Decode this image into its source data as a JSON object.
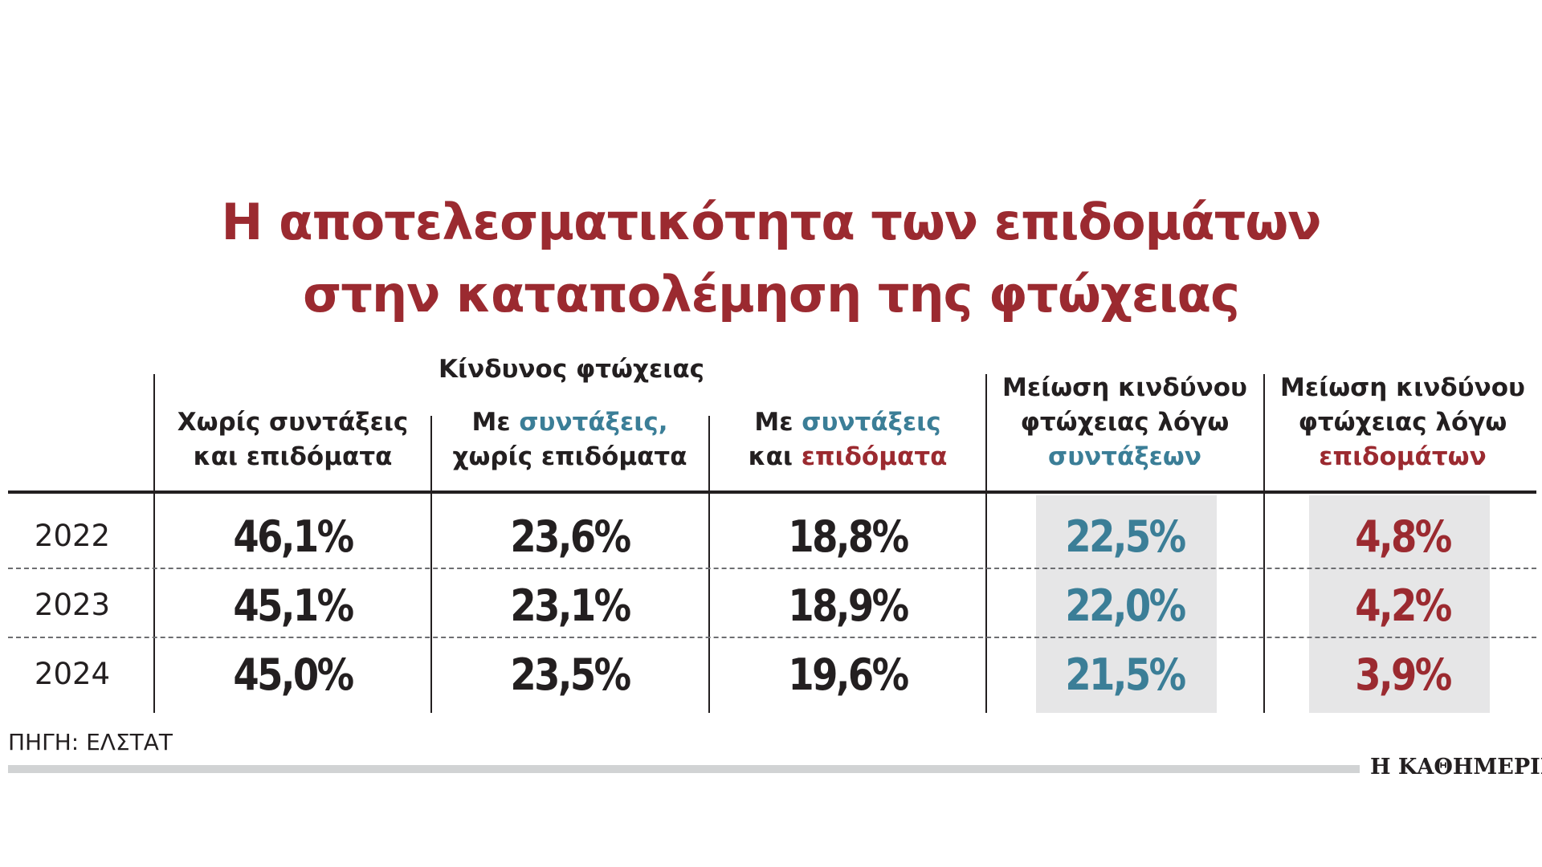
{
  "chart_data": {
    "type": "table",
    "title_lines": [
      "Η αποτελεσματικότητα των επιδομάτων",
      "στην καταπολέμηση της φτώχειας"
    ],
    "group_header": "Κίνδυνος φτώχειας",
    "columns": [
      {
        "parts": [
          {
            "line": 0,
            "text": "Χωρίς συντάξεις",
            "color": "dark"
          },
          {
            "line": 1,
            "text": "και επιδόματα",
            "color": "dark"
          }
        ]
      },
      {
        "parts": [
          {
            "line": 0,
            "text": "Με ",
            "color": "dark"
          },
          {
            "line": 0,
            "text": "συντάξεις,",
            "color": "blue"
          },
          {
            "line": 1,
            "text": "χωρίς επιδόματα",
            "color": "dark"
          }
        ]
      },
      {
        "parts": [
          {
            "line": 0,
            "text": "Με ",
            "color": "dark"
          },
          {
            "line": 0,
            "text": "συντάξεις",
            "color": "blue"
          },
          {
            "line": 1,
            "text": "και ",
            "color": "dark"
          },
          {
            "line": 1,
            "text": "επιδόματα",
            "color": "red"
          }
        ]
      },
      {
        "parts": [
          {
            "line": 0,
            "text": "Μείωση κινδύνου",
            "color": "dark"
          },
          {
            "line": 1,
            "text": "φτώχειας λόγω",
            "color": "dark"
          },
          {
            "line": 2,
            "text": "συντάξεων",
            "color": "blue"
          }
        ]
      },
      {
        "parts": [
          {
            "line": 0,
            "text": "Μείωση κινδύνου",
            "color": "dark"
          },
          {
            "line": 1,
            "text": "φτώχειας λόγω",
            "color": "dark"
          },
          {
            "line": 2,
            "text": "επιδομάτων",
            "color": "red"
          }
        ]
      }
    ],
    "rows": [
      {
        "year": "2022",
        "values": [
          "46,1%",
          "23,6%",
          "18,8%",
          "22,5%",
          "4,8%"
        ]
      },
      {
        "year": "2023",
        "values": [
          "45,1%",
          "23,1%",
          "18,9%",
          "22,0%",
          "4,2%"
        ]
      },
      {
        "year": "2024",
        "values": [
          "45,0%",
          "23,5%",
          "19,6%",
          "21,5%",
          "3,9%"
        ]
      }
    ],
    "value_colors": [
      "dark",
      "dark",
      "dark",
      "blue",
      "red"
    ],
    "shaded_columns": [
      3,
      4
    ]
  },
  "colors": {
    "dark": "#231f20",
    "blue": "#3b7e97",
    "red": "#9b2a30",
    "shade": "#e6e6e7",
    "bar": "#d1d3d4"
  },
  "footer": {
    "source": "ΠΗΓΗ: ΕΛΣΤΑΤ",
    "brand": "Η ΚΑΘΗΜΕΡΙΝΗ"
  }
}
